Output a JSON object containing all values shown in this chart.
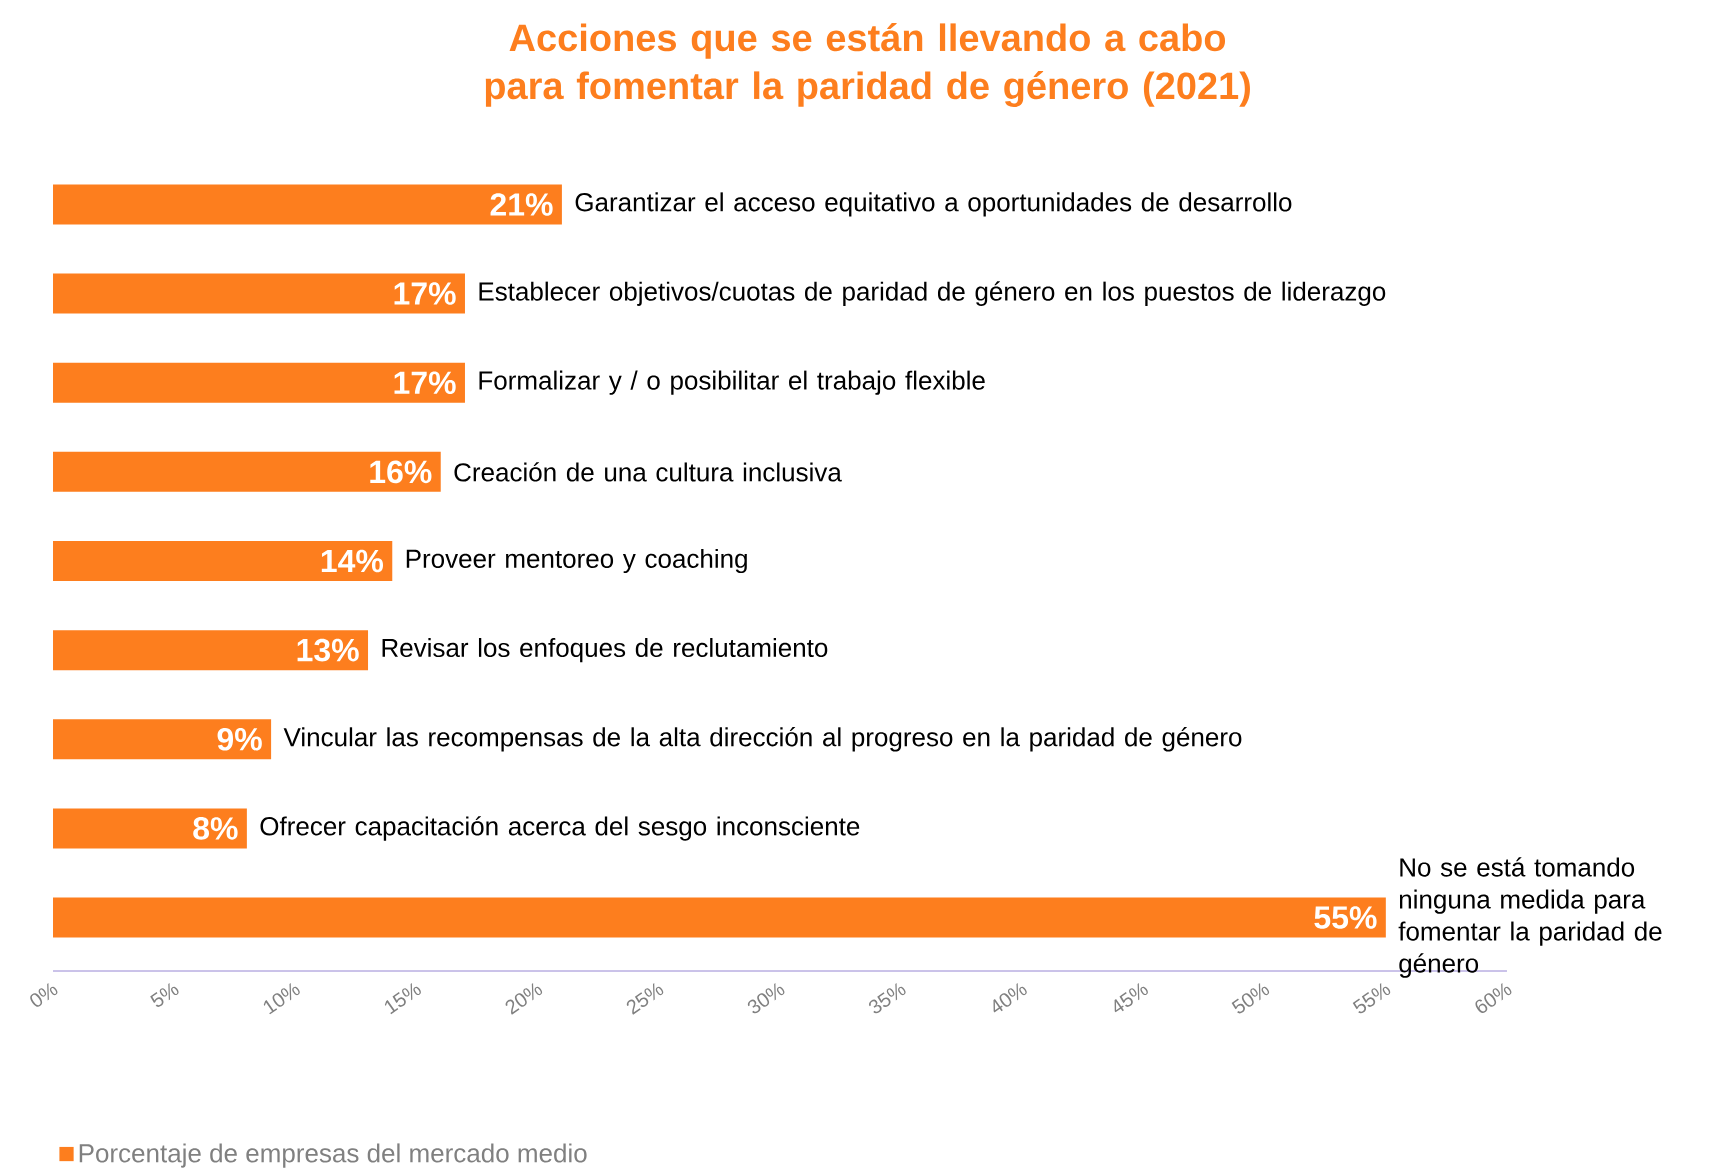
{
  "chart_data": {
    "type": "bar",
    "orientation": "horizontal",
    "title": "Acciones que se están llevando a cabo para fomentar la paridad de género (2021)",
    "categories": [
      "Garantizar el acceso equitativo a oportunidades de desarrollo",
      "Establecer objetivos/cuotas de paridad de género en los puestos de liderazgo",
      "Formalizar y / o posibilitar el trabajo flexible",
      "Creación de una cultura inclusiva",
      "Proveer mentoreo y coaching",
      "Revisar los enfoques de reclutamiento",
      "Vincular las recompensas de la alta dirección al progreso en la paridad de género",
      "Ofrecer capacitación acerca del sesgo inconsciente",
      "No se está tomando ninguna medida para fomentar la paridad de género"
    ],
    "series": [
      {
        "name": "Porcentaje de empresas del mercado medio",
        "color": "#fd7e1e",
        "values": [
          21,
          17,
          17,
          16,
          14,
          13,
          9,
          8,
          55
        ],
        "value_labels": [
          "21%",
          "17%",
          "17%",
          "16%",
          "14%",
          "13%",
          "9%",
          "8%",
          "55%"
        ]
      }
    ],
    "xlim": [
      0,
      60
    ],
    "xticks": [
      {
        "value": 0,
        "label": "0%"
      },
      {
        "value": 5,
        "label": "5%"
      },
      {
        "value": 10,
        "label": "10%"
      },
      {
        "value": 15,
        "label": "15%"
      },
      {
        "value": 20,
        "label": "20%"
      },
      {
        "value": 25,
        "label": "25%"
      },
      {
        "value": 30,
        "label": "30%"
      },
      {
        "value": 35,
        "label": "35%"
      },
      {
        "value": 40,
        "label": "40%"
      },
      {
        "value": 45,
        "label": "45%"
      },
      {
        "value": 50,
        "label": "50%"
      },
      {
        "value": 55,
        "label": "55%"
      },
      {
        "value": 60,
        "label": "60%"
      }
    ],
    "legend": "bottom left",
    "tick_labels": "x"
  }
}
